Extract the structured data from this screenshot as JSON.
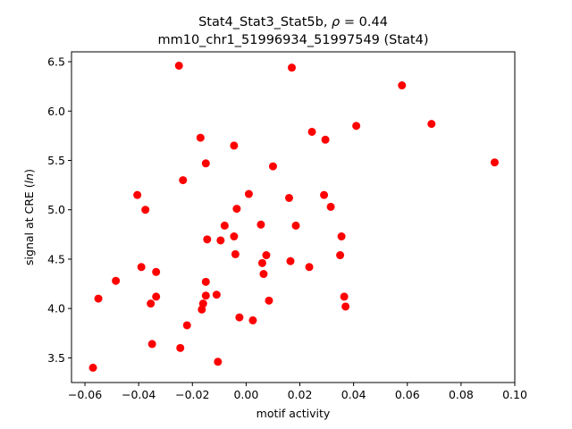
{
  "chart_data": {
    "type": "scatter",
    "title_line1_prefix": "Stat4_Stat3_Stat5b, ",
    "title_rho_symbol": "ρ",
    "title_rho_suffix": " = 0.44",
    "title_line2": "mm10_chr1_51996934_51997549 (Stat4)",
    "xlabel": "motif activity",
    "ylabel_prefix": "signal at CRE (",
    "ylabel_italic": "ln",
    "ylabel_suffix": ")",
    "xlim": [
      -0.065,
      0.1
    ],
    "ylim": [
      3.25,
      6.6
    ],
    "xticks": [
      -0.06,
      -0.04,
      -0.02,
      0.0,
      0.02,
      0.04,
      0.06,
      0.08,
      0.1
    ],
    "xtick_labels": [
      "−0.06",
      "−0.04",
      "−0.02",
      "0.00",
      "0.02",
      "0.04",
      "0.06",
      "0.08",
      "0.10"
    ],
    "yticks": [
      3.5,
      4.0,
      4.5,
      5.0,
      5.5,
      6.0,
      6.5
    ],
    "ytick_labels": [
      "3.5",
      "4.0",
      "4.5",
      "5.0",
      "5.5",
      "6.0",
      "6.5"
    ],
    "marker_color": "#ff0000",
    "grid": false,
    "points": [
      {
        "x": -0.057,
        "y": 3.4
      },
      {
        "x": -0.055,
        "y": 4.1
      },
      {
        "x": -0.0485,
        "y": 4.28
      },
      {
        "x": -0.0405,
        "y": 5.15
      },
      {
        "x": -0.039,
        "y": 4.42
      },
      {
        "x": -0.0375,
        "y": 5.0
      },
      {
        "x": -0.0355,
        "y": 4.05
      },
      {
        "x": -0.035,
        "y": 3.64
      },
      {
        "x": -0.0335,
        "y": 4.37
      },
      {
        "x": -0.0335,
        "y": 4.12
      },
      {
        "x": -0.025,
        "y": 6.46
      },
      {
        "x": -0.0245,
        "y": 3.6
      },
      {
        "x": -0.0235,
        "y": 5.3
      },
      {
        "x": -0.022,
        "y": 3.83
      },
      {
        "x": -0.017,
        "y": 5.73
      },
      {
        "x": -0.0165,
        "y": 3.99
      },
      {
        "x": -0.016,
        "y": 4.05
      },
      {
        "x": -0.015,
        "y": 5.47
      },
      {
        "x": -0.015,
        "y": 4.27
      },
      {
        "x": -0.015,
        "y": 4.13
      },
      {
        "x": -0.0145,
        "y": 4.7
      },
      {
        "x": -0.011,
        "y": 4.14
      },
      {
        "x": -0.0105,
        "y": 3.46
      },
      {
        "x": -0.0095,
        "y": 4.69
      },
      {
        "x": -0.008,
        "y": 4.84
      },
      {
        "x": -0.0045,
        "y": 5.65
      },
      {
        "x": -0.0045,
        "y": 4.73
      },
      {
        "x": -0.004,
        "y": 4.55
      },
      {
        "x": -0.0035,
        "y": 5.01
      },
      {
        "x": -0.0025,
        "y": 3.91
      },
      {
        "x": 0.001,
        "y": 5.16
      },
      {
        "x": 0.0025,
        "y": 3.88
      },
      {
        "x": 0.0055,
        "y": 4.85
      },
      {
        "x": 0.006,
        "y": 4.46
      },
      {
        "x": 0.0065,
        "y": 4.35
      },
      {
        "x": 0.0075,
        "y": 4.54
      },
      {
        "x": 0.0085,
        "y": 4.08
      },
      {
        "x": 0.01,
        "y": 5.44
      },
      {
        "x": 0.016,
        "y": 5.12
      },
      {
        "x": 0.0165,
        "y": 4.48
      },
      {
        "x": 0.017,
        "y": 6.44
      },
      {
        "x": 0.0185,
        "y": 4.84
      },
      {
        "x": 0.0235,
        "y": 4.42
      },
      {
        "x": 0.0245,
        "y": 5.79
      },
      {
        "x": 0.029,
        "y": 5.15
      },
      {
        "x": 0.0295,
        "y": 5.71
      },
      {
        "x": 0.0315,
        "y": 5.03
      },
      {
        "x": 0.035,
        "y": 4.54
      },
      {
        "x": 0.0355,
        "y": 4.73
      },
      {
        "x": 0.0365,
        "y": 4.12
      },
      {
        "x": 0.037,
        "y": 4.02
      },
      {
        "x": 0.041,
        "y": 5.85
      },
      {
        "x": 0.058,
        "y": 6.26
      },
      {
        "x": 0.069,
        "y": 5.87
      },
      {
        "x": 0.0925,
        "y": 5.48
      }
    ]
  }
}
